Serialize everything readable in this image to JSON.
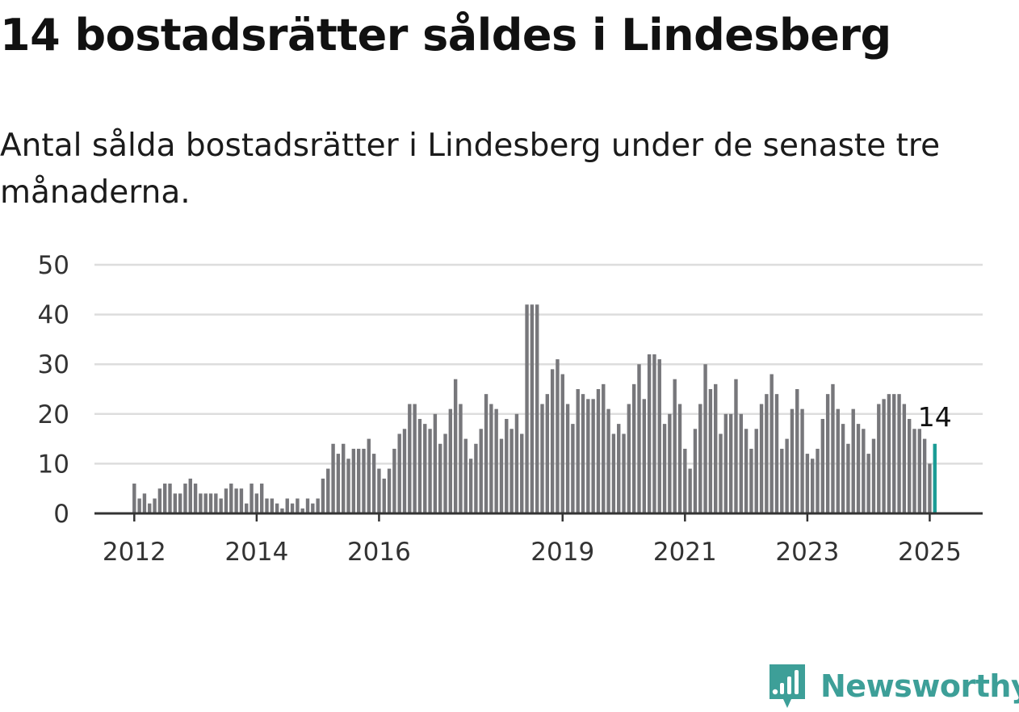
{
  "title": "14 bostadsrätter såldes i Lindesberg",
  "subtitle": "Antal sålda bostadsrätter i Lindesberg under de senaste tre månaderna.",
  "brand": {
    "name": "Newsworthy",
    "color": "#3d9f98",
    "icon": "newsworthy-logo-icon"
  },
  "colors": {
    "bar": "#77777b",
    "highlight": "#1a9c95",
    "grid": "#dddddd",
    "axis": "#333333"
  },
  "chart_data": {
    "type": "bar",
    "x_start": "2012-01",
    "x_end": "2025-02",
    "ylim": [
      0,
      50
    ],
    "y_ticks": [
      0,
      10,
      20,
      30,
      40,
      50
    ],
    "x_ticks": [
      "2012",
      "2014",
      "2016",
      "2019",
      "2021",
      "2023",
      "2025"
    ],
    "grid": true,
    "values": [
      6,
      3,
      4,
      2,
      3,
      5,
      6,
      6,
      4,
      4,
      6,
      7,
      6,
      4,
      4,
      4,
      4,
      3,
      5,
      6,
      5,
      5,
      2,
      6,
      4,
      6,
      3,
      3,
      2,
      1,
      3,
      2,
      3,
      1,
      3,
      2,
      3,
      7,
      9,
      14,
      12,
      14,
      11,
      13,
      13,
      13,
      15,
      12,
      9,
      7,
      9,
      13,
      16,
      17,
      22,
      22,
      19,
      18,
      17,
      20,
      14,
      16,
      21,
      27,
      22,
      15,
      11,
      14,
      17,
      24,
      22,
      21,
      15,
      19,
      17,
      20,
      16,
      42,
      42,
      42,
      22,
      24,
      29,
      31,
      28,
      22,
      18,
      25,
      24,
      23,
      23,
      25,
      26,
      21,
      16,
      18,
      16,
      22,
      26,
      30,
      23,
      32,
      32,
      31,
      18,
      20,
      27,
      22,
      13,
      9,
      17,
      22,
      30,
      25,
      26,
      16,
      20,
      20,
      27,
      20,
      17,
      13,
      17,
      22,
      24,
      28,
      24,
      13,
      15,
      21,
      25,
      21,
      12,
      11,
      13,
      19,
      24,
      26,
      21,
      18,
      14,
      21,
      18,
      17,
      12,
      15,
      22,
      23,
      24,
      24,
      24,
      22,
      19,
      17,
      17,
      15,
      10,
      14
    ],
    "highlight_last": true,
    "highlight_label": "14"
  }
}
